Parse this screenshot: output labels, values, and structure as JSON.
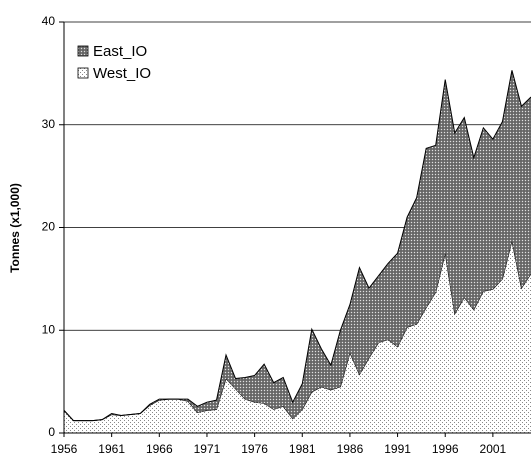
{
  "chart_data": {
    "type": "area",
    "stacked": true,
    "y_label": "Tonnes (x1,000)",
    "x": [
      1956,
      1957,
      1958,
      1959,
      1960,
      1961,
      1962,
      1963,
      1964,
      1965,
      1966,
      1967,
      1968,
      1969,
      1970,
      1971,
      1972,
      1973,
      1974,
      1975,
      1976,
      1977,
      1978,
      1979,
      1980,
      1981,
      1982,
      1983,
      1984,
      1985,
      1986,
      1987,
      1988,
      1989,
      1990,
      1991,
      1992,
      1993,
      1994,
      1995,
      1996,
      1997,
      1998,
      1999,
      2000,
      2001,
      2002,
      2003,
      2004,
      2005
    ],
    "series": [
      {
        "name": "West_IO",
        "color": "#ffffff",
        "pattern": "dots",
        "values": [
          2.2,
          1.2,
          1.2,
          1.2,
          1.3,
          1.8,
          1.7,
          1.8,
          1.9,
          2.7,
          3.2,
          3.3,
          3.3,
          3.1,
          2.0,
          2.2,
          2.3,
          5.3,
          4.3,
          3.3,
          3.0,
          2.9,
          2.3,
          2.6,
          1.4,
          2.3,
          4.0,
          4.5,
          4.2,
          4.5,
          7.8,
          5.7,
          7.3,
          8.8,
          9.1,
          8.4,
          10.3,
          10.6,
          12.2,
          13.7,
          17.5,
          11.6,
          13.2,
          12.0,
          13.8,
          14.0,
          15.0,
          18.7,
          14.1,
          15.5
        ]
      },
      {
        "name": "East_IO",
        "color": "#777777",
        "pattern": "crosshatch",
        "values": [
          0,
          0,
          0,
          0,
          0,
          0.1,
          0,
          0,
          0,
          0.1,
          0.1,
          0,
          0,
          0.2,
          0.6,
          0.8,
          0.9,
          2.3,
          1.0,
          2.1,
          2.6,
          3.8,
          2.6,
          2.8,
          1.6,
          2.5,
          6.1,
          3.7,
          2.4,
          5.5,
          4.7,
          10.4,
          6.8,
          6.5,
          7.4,
          9.1,
          10.7,
          12.3,
          15.5,
          14.3,
          16.9,
          17.6,
          17.5,
          14.8,
          15.9,
          14.6,
          15.3,
          16.6,
          17.7,
          17.2
        ]
      }
    ],
    "legend_order": [
      1,
      0
    ],
    "legend": "upper left",
    "xlim": [
      1956,
      2005
    ],
    "xticks": [
      1956,
      1961,
      1966,
      1971,
      1976,
      1981,
      1986,
      1991,
      1996,
      2001
    ],
    "ylim": [
      0,
      40
    ],
    "yticks": [
      0,
      10,
      20,
      30,
      40
    ],
    "grid": true
  }
}
